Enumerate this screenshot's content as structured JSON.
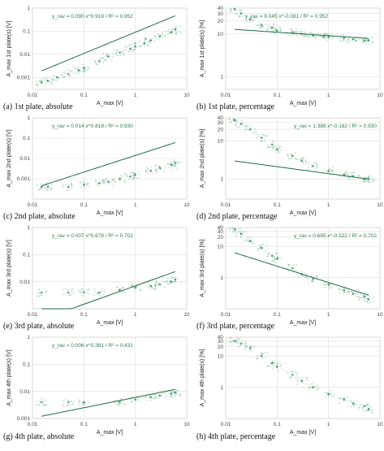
{
  "figure": {
    "panels": [
      {
        "label": "(a) 1st plate, absolute"
      },
      {
        "label": "(b) 1st plate, percentage"
      },
      {
        "label": "(c) 2nd plate, absolute"
      },
      {
        "label": "(d) 2nd plate, percentage"
      },
      {
        "label": "(e) 3rd plate, absolute"
      },
      {
        "label": "(f) 3rd plate, percentage"
      },
      {
        "label": "(g) 4th plate, absolute"
      },
      {
        "label": "(h) 4th plate, percentage"
      }
    ]
  },
  "colors": {
    "points": "#2e8b57",
    "fit": "#1e6b45",
    "equation": "#2e7d4f",
    "grid": "#dcdcdc",
    "axis": "#444444"
  },
  "chart_data": [
    {
      "type": "scatter",
      "title": "",
      "xlabel": "A_max [V]",
      "ylabel": "A_max 1st plate(s) [V]",
      "x_scale": "log",
      "y_scale": "log",
      "xlim": [
        0.01,
        10
      ],
      "ylim": [
        0.0003,
        1
      ],
      "x_ticks": [
        "0.01",
        "0.1",
        "1",
        "10"
      ],
      "y_ticks": [
        "0.001",
        "0.01",
        "0.1",
        "1"
      ],
      "fit": {
        "a": 0.09,
        "b": 0.919
      },
      "equation": "y_rav = 0.090 x^0.919 / R² = 0.952",
      "points": [
        [
          0.015,
          0.0006
        ],
        [
          0.02,
          0.0007
        ],
        [
          0.03,
          0.001
        ],
        [
          0.05,
          0.0014
        ],
        [
          0.08,
          0.002
        ],
        [
          0.1,
          0.0025
        ],
        [
          0.2,
          0.005
        ],
        [
          0.3,
          0.008
        ],
        [
          0.5,
          0.012
        ],
        [
          0.8,
          0.017
        ],
        [
          1,
          0.022
        ],
        [
          1.5,
          0.03
        ],
        [
          2,
          0.04
        ],
        [
          3,
          0.06
        ],
        [
          5,
          0.09
        ],
        [
          6,
          0.12
        ]
      ]
    },
    {
      "type": "scatter",
      "title": "",
      "xlabel": "A_max [V]",
      "ylabel": "A_max 1st plate(s) [%]",
      "x_scale": "log",
      "y_scale": "log",
      "xlim": [
        0.01,
        10
      ],
      "ylim": [
        0.5,
        40
      ],
      "x_ticks": [
        "0.01",
        "0.1",
        "1",
        "10"
      ],
      "y_ticks": [
        "1",
        "10",
        "20",
        "30",
        "40"
      ],
      "fit": {
        "a": 9.045,
        "b": -0.081
      },
      "equation": "y_rav = 9.045 x^-0.081 / R² = 0.952",
      "points": [
        [
          0.015,
          38
        ],
        [
          0.02,
          30
        ],
        [
          0.03,
          22
        ],
        [
          0.05,
          16
        ],
        [
          0.08,
          14
        ],
        [
          0.1,
          12
        ],
        [
          0.2,
          11
        ],
        [
          0.3,
          10
        ],
        [
          0.5,
          9
        ],
        [
          0.8,
          8.5
        ],
        [
          1,
          8.5
        ],
        [
          2,
          8
        ],
        [
          3,
          7.5
        ],
        [
          5,
          7
        ],
        [
          6,
          7
        ]
      ]
    },
    {
      "type": "scatter",
      "title": "",
      "xlabel": "A_max [V]",
      "ylabel": "A_max 2nd plate(s) [V]",
      "x_scale": "log",
      "y_scale": "log",
      "xlim": [
        0.01,
        10
      ],
      "ylim": [
        0.0001,
        1
      ],
      "x_ticks": [
        "0.01",
        "0.1",
        "1",
        "10"
      ],
      "y_ticks": [
        "0.001",
        "0.01",
        "0.1",
        "1"
      ],
      "fit": {
        "a": 0.014,
        "b": 0.818
      },
      "equation": "y_rav = 0.014 x^0.818 / R² = 0.930",
      "points": [
        [
          0.015,
          0.0004
        ],
        [
          0.02,
          0.0004
        ],
        [
          0.05,
          0.0004
        ],
        [
          0.1,
          0.0005
        ],
        [
          0.2,
          0.0006
        ],
        [
          0.3,
          0.0007
        ],
        [
          0.5,
          0.001
        ],
        [
          0.8,
          0.0013
        ],
        [
          1,
          0.0016
        ],
        [
          2,
          0.0025
        ],
        [
          3,
          0.0035
        ],
        [
          5,
          0.005
        ],
        [
          6,
          0.006
        ]
      ]
    },
    {
      "type": "scatter",
      "title": "",
      "xlabel": "A_max [V]",
      "ylabel": "A_max 2nd plate(s) [%]",
      "x_scale": "log",
      "y_scale": "log",
      "xlim": [
        0.01,
        10
      ],
      "ylim": [
        0.3,
        40
      ],
      "x_ticks": [
        "0.01",
        "0.1",
        "1",
        "10"
      ],
      "y_ticks": [
        "1",
        "10",
        "20",
        "30",
        "40"
      ],
      "fit": {
        "a": 1.388,
        "b": -0.182
      },
      "equation": "y_rav = 1.388 x^-0.182 / R² = 0.930",
      "points": [
        [
          0.015,
          35
        ],
        [
          0.02,
          28
        ],
        [
          0.03,
          20
        ],
        [
          0.05,
          12
        ],
        [
          0.08,
          8
        ],
        [
          0.1,
          6
        ],
        [
          0.2,
          4
        ],
        [
          0.3,
          3
        ],
        [
          0.5,
          2.2
        ],
        [
          1,
          1.6
        ],
        [
          2,
          1.3
        ],
        [
          3,
          1.2
        ],
        [
          5,
          1
        ],
        [
          6,
          1
        ]
      ]
    },
    {
      "type": "scatter",
      "title": "",
      "xlabel": "A_max [V]",
      "ylabel": "A_max 3rd plate(s) [V]",
      "x_scale": "log",
      "y_scale": "log",
      "xlim": [
        0.01,
        10
      ],
      "ylim": [
        0.001,
        1
      ],
      "x_ticks": [
        "0.01",
        "0.1",
        "1",
        "10"
      ],
      "y_ticks": [
        "0.01",
        "0.1",
        "1"
      ],
      "fit": {
        "a": 0.007,
        "b": 0.678
      },
      "equation": "y_rav = 0.007 x^0.678 / R² = 0.702",
      "points": [
        [
          0.015,
          0.004
        ],
        [
          0.05,
          0.004
        ],
        [
          0.1,
          0.004
        ],
        [
          0.2,
          0.004
        ],
        [
          0.5,
          0.005
        ],
        [
          1,
          0.006
        ],
        [
          2,
          0.007
        ],
        [
          3,
          0.008
        ],
        [
          5,
          0.01
        ],
        [
          6,
          0.012
        ]
      ]
    },
    {
      "type": "scatter",
      "title": "",
      "xlabel": "A_max [V]",
      "ylabel": "A_max 3rd plate(s) [%]",
      "x_scale": "log",
      "y_scale": "log",
      "xlim": [
        0.01,
        10
      ],
      "ylim": [
        0.1,
        40
      ],
      "x_ticks": [
        "0.01",
        "0.1",
        "1",
        "10"
      ],
      "y_ticks": [
        "1",
        "10",
        "20",
        "30",
        "40"
      ],
      "fit": {
        "a": 0.695,
        "b": -0.522
      },
      "equation": "y_rav = 0.695 x^-0.522 / R² = 0.702",
      "points": [
        [
          0.015,
          35
        ],
        [
          0.02,
          25
        ],
        [
          0.03,
          15
        ],
        [
          0.05,
          9
        ],
        [
          0.08,
          5
        ],
        [
          0.1,
          4
        ],
        [
          0.2,
          2
        ],
        [
          0.3,
          1.3
        ],
        [
          0.5,
          0.9
        ],
        [
          1,
          0.6
        ],
        [
          2,
          0.4
        ],
        [
          3,
          0.3
        ],
        [
          5,
          0.25
        ],
        [
          6,
          0.2
        ]
      ]
    },
    {
      "type": "scatter",
      "title": "",
      "xlabel": "A_max [V]",
      "ylabel": "A_max 4th plate(s) [V]",
      "x_scale": "log",
      "y_scale": "log",
      "xlim": [
        0.01,
        10
      ],
      "ylim": [
        0.001,
        1
      ],
      "x_ticks": [
        "0.01",
        "0.1",
        "1",
        "10"
      ],
      "y_ticks": [
        "0.001",
        "0.01",
        "0.1",
        "1"
      ],
      "fit": {
        "a": 0.006,
        "b": 0.381
      },
      "equation": "y_rav = 0.006 x^0.381 / R² = 0.431",
      "points": [
        [
          0.015,
          0.004
        ],
        [
          0.05,
          0.004
        ],
        [
          0.1,
          0.004
        ],
        [
          0.5,
          0.004
        ],
        [
          1,
          0.005
        ],
        [
          2,
          0.006
        ],
        [
          3,
          0.007
        ],
        [
          5,
          0.008
        ],
        [
          6,
          0.009
        ]
      ]
    },
    {
      "type": "scatter",
      "title": "",
      "xlabel": "A_max [V]",
      "ylabel": "A_max 4th plate(s) [%]",
      "x_scale": "log",
      "y_scale": "log",
      "xlim": [
        0.01,
        10
      ],
      "ylim": [
        0.1,
        40
      ],
      "x_ticks": [
        "0.01",
        "0.1",
        "1",
        "10"
      ],
      "y_ticks": [
        "1",
        "10",
        "20",
        "30",
        "40"
      ],
      "fit": null,
      "equation": "",
      "points": [
        [
          0.015,
          30
        ],
        [
          0.02,
          25
        ],
        [
          0.03,
          18
        ],
        [
          0.05,
          10
        ],
        [
          0.08,
          6
        ],
        [
          0.1,
          4.5
        ],
        [
          0.2,
          2.5
        ],
        [
          0.3,
          1.6
        ],
        [
          0.5,
          1
        ],
        [
          1,
          0.6
        ],
        [
          2,
          0.4
        ],
        [
          3,
          0.3
        ],
        [
          5,
          0.25
        ],
        [
          6,
          0.2
        ]
      ]
    }
  ]
}
